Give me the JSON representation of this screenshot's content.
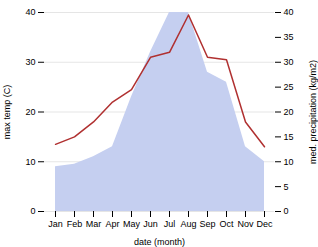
{
  "chart_data": {
    "type": "line",
    "xlabel": "date (month)",
    "ylabel": "max temp (C)",
    "y2label": "med. precipitation (kg/m2)",
    "categories": [
      "Jan",
      "Feb",
      "Mar",
      "Apr",
      "May",
      "Jun",
      "Jul",
      "Aug",
      "Sep",
      "Oct",
      "Nov",
      "Dec"
    ],
    "series": [
      {
        "type": "area",
        "axis": "y2",
        "color": "#c5cff0",
        "values": [
          9.0,
          9.5,
          11.0,
          13.0,
          23.0,
          32.0,
          40.0,
          40.0,
          28.0,
          26.0,
          13.0,
          10.0
        ]
      },
      {
        "type": "line",
        "axis": "y",
        "color": "#b03030",
        "values": [
          13.5,
          15.0,
          18.0,
          22.0,
          24.5,
          31.0,
          32.0,
          39.5,
          31.0,
          30.5,
          18.0,
          13.0
        ]
      }
    ],
    "ylim": [
      0,
      40
    ],
    "yticks": [
      0,
      10,
      20,
      30,
      40
    ],
    "y2lim": [
      0,
      40
    ],
    "y2ticks": [
      0,
      5,
      10,
      15,
      20,
      25,
      30,
      35,
      40
    ],
    "grid": true
  }
}
